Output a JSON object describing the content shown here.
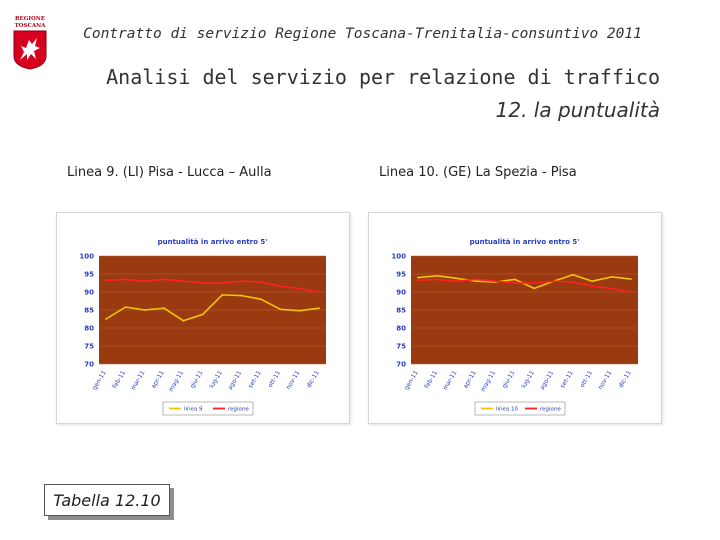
{
  "header": {
    "logo_line1": "REGIONE",
    "logo_line2": "TOSCANA",
    "title": "Contratto di servizio Regione Toscana-Trenitalia-consuntivo 2011"
  },
  "main_title": "Analisi del servizio per relazione di traffico",
  "subtitle": "12. la puntualità",
  "table_label": "Tabella 12.10",
  "colors": {
    "plot_bg": "#9a3a10",
    "line_series": "#f2c500",
    "regione_series": "#ff2020"
  },
  "chart_data": [
    {
      "type": "line",
      "caption": "Linea 9. (LI) Pisa - Lucca – Aulla",
      "title": "puntualità in arrivo entro 5'",
      "categories": [
        "gen-11",
        "feb-11",
        "mar-11",
        "apr-11",
        "mag-11",
        "giu-11",
        "lug-11",
        "ago-11",
        "set-11",
        "ott-11",
        "nov-11",
        "dic-11"
      ],
      "yticks": [
        "100",
        "95",
        "90",
        "85",
        "80",
        "75",
        "70"
      ],
      "ylim": [
        70,
        100
      ],
      "grid": true,
      "legend_position": "bottom",
      "series": [
        {
          "name": "linea 9",
          "color": "#f2c500",
          "values": [
            82.5,
            85.8,
            85,
            85.5,
            82,
            83.8,
            89.2,
            89,
            88,
            85.2,
            84.8,
            85.5
          ]
        },
        {
          "name": "regione",
          "color": "#ff2020",
          "values": [
            93.2,
            93.5,
            93,
            93.5,
            93,
            92.5,
            92.5,
            93,
            92.8,
            91.6,
            91,
            90
          ]
        }
      ]
    },
    {
      "type": "line",
      "caption": "Linea 10. (GE) La Spezia - Pisa",
      "title": "puntualità in arrivo entro 5'",
      "categories": [
        "gen-11",
        "feb-11",
        "mar-11",
        "apr-11",
        "mag-11",
        "giu-11",
        "lug-11",
        "ago-11",
        "set-11",
        "ott-11",
        "nov-11",
        "dic-11"
      ],
      "yticks": [
        "100",
        "95",
        "90",
        "85",
        "80",
        "75",
        "70"
      ],
      "ylim": [
        70,
        100
      ],
      "grid": true,
      "legend_position": "bottom",
      "series": [
        {
          "name": "linea 10",
          "color": "#f2c500",
          "values": [
            94,
            94.5,
            93.8,
            93,
            92.8,
            93.5,
            91,
            93,
            94.8,
            93,
            94.2,
            93.6
          ]
        },
        {
          "name": "regione",
          "color": "#ff2020",
          "values": [
            93.2,
            93.5,
            93,
            93.5,
            93,
            92.5,
            92.5,
            93,
            92.8,
            91.6,
            91,
            90
          ]
        }
      ]
    }
  ]
}
